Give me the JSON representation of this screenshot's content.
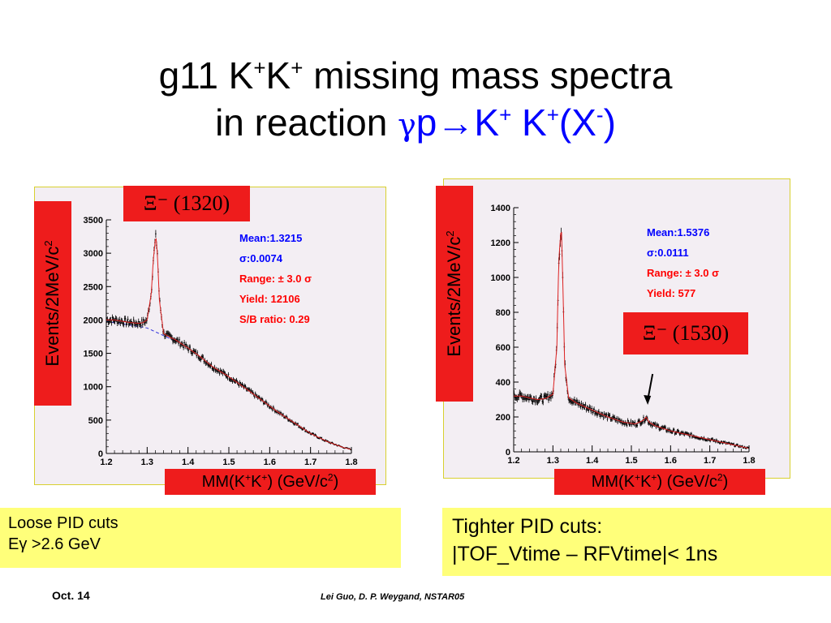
{
  "title": {
    "line1_pre": "g11 K",
    "line1_sup1": "+",
    "line1_mid": "K",
    "line1_sup2": "+",
    "line1_post": " missing mass spectra",
    "line2_pre": "in reaction ",
    "line2_gamma": "γ",
    "line2_p": "p",
    "line2_arrow": "→",
    "line2_k1": "K",
    "line2_k1_sup": "+",
    "line2_k2": " K",
    "line2_k2_sup": "+",
    "line2_x_open": "(X",
    "line2_x_sup": "-",
    "line2_x_close": ")"
  },
  "colors": {
    "red_box": "#ee1c1c",
    "note_bg": "#ffff7a",
    "title_blue": "#0000ff",
    "stat_blue": "#0000ff",
    "stat_red": "#ff0000",
    "frame": "#d8d030"
  },
  "left": {
    "tag": "Ξ⁻ (1320)",
    "ylabel_text": "Events/2MeV/c",
    "ylabel_sup": "2",
    "xlabel_pre": "MM(K",
    "xlabel_sup1": "+",
    "xlabel_mid": "K",
    "xlabel_sup2": "+",
    "xlabel_post": ") (GeV/c",
    "xlabel_sup3": "2",
    "xlabel_end": ")",
    "stats": {
      "mean": "Mean:1.3215",
      "sigma": "σ:0.0074",
      "range": "Range: ± 3.0 σ",
      "yield": "Yield: 12106",
      "sb": "S/B ratio:   0.29"
    },
    "note_line1": "Loose PID cuts",
    "note_line2": "Eγ >2.6 GeV"
  },
  "right": {
    "tag": "Ξ⁻ (1530)",
    "ylabel_text": "Events/2MeV/c",
    "ylabel_sup": "2",
    "xlabel_pre": "MM(K",
    "xlabel_sup1": "+",
    "xlabel_mid": "K",
    "xlabel_sup2": "+",
    "xlabel_post": ") (GeV/c",
    "xlabel_sup3": "2",
    "xlabel_end": ")",
    "stats": {
      "mean": "Mean:1.5376",
      "sigma": "σ:0.0111",
      "range": "Range: ± 3.0 σ",
      "yield": "Yield: 577"
    },
    "note_line1": "Tighter PID cuts:",
    "note_line2": "|TOF_Vtime – RFVtime|< 1ns"
  },
  "footer": {
    "date": "Oct. 14",
    "authors": "Lei Guo, D. P. Weygand, NSTAR05"
  },
  "chart_data": [
    {
      "type": "scatter",
      "title": "",
      "xlabel": "MM(K+K+) (GeV/c2)",
      "ylabel": "Events/2MeV/c2",
      "xlim": [
        1.2,
        1.8
      ],
      "ylim": [
        0,
        3500
      ],
      "xticks": [
        "1.2",
        "1.3",
        "1.4",
        "1.5",
        "1.6",
        "1.7",
        "1.8"
      ],
      "yticks": [
        "0",
        "500",
        "1000",
        "1500",
        "2000",
        "2500",
        "3000",
        "3500"
      ],
      "x": [
        1.2,
        1.22,
        1.24,
        1.26,
        1.28,
        1.29,
        1.3,
        1.31,
        1.315,
        1.32,
        1.3215,
        1.325,
        1.33,
        1.34,
        1.35,
        1.37,
        1.4,
        1.43,
        1.46,
        1.5,
        1.54,
        1.58,
        1.62,
        1.66,
        1.7,
        1.74,
        1.78,
        1.8
      ],
      "y": [
        2000,
        2000,
        1980,
        1960,
        1950,
        1960,
        2000,
        2400,
        2900,
        3200,
        3250,
        3000,
        2300,
        1800,
        1760,
        1700,
        1580,
        1450,
        1300,
        1150,
        980,
        800,
        620,
        460,
        300,
        180,
        90,
        60
      ],
      "fit_peak": {
        "mean": 1.3215,
        "sigma": 0.0074
      },
      "background_line": {
        "x": [
          1.2,
          1.3,
          1.37
        ],
        "y": [
          1980,
          1880,
          1680
        ]
      }
    },
    {
      "type": "scatter",
      "title": "",
      "xlabel": "MM(K+K+) (GeV/c2)",
      "ylabel": "Events/2MeV/c2",
      "xlim": [
        1.2,
        1.8
      ],
      "ylim": [
        0,
        1400
      ],
      "xticks": [
        "1.2",
        "1.3",
        "1.4",
        "1.5",
        "1.6",
        "1.7",
        "1.8"
      ],
      "yticks": [
        "0",
        "200",
        "400",
        "600",
        "800",
        "1000",
        "1200",
        "1400"
      ],
      "x": [
        1.2,
        1.22,
        1.24,
        1.26,
        1.28,
        1.3,
        1.31,
        1.315,
        1.3215,
        1.325,
        1.33,
        1.34,
        1.36,
        1.4,
        1.44,
        1.48,
        1.51,
        1.53,
        1.5376,
        1.545,
        1.56,
        1.6,
        1.64,
        1.68,
        1.72,
        1.76,
        1.8
      ],
      "y": [
        320,
        320,
        310,
        300,
        305,
        330,
        600,
        1100,
        1300,
        1000,
        500,
        310,
        280,
        240,
        200,
        170,
        160,
        180,
        200,
        170,
        150,
        120,
        100,
        80,
        60,
        40,
        20
      ],
      "fit_peak": {
        "mean": 1.5376,
        "sigma": 0.0111
      }
    }
  ]
}
